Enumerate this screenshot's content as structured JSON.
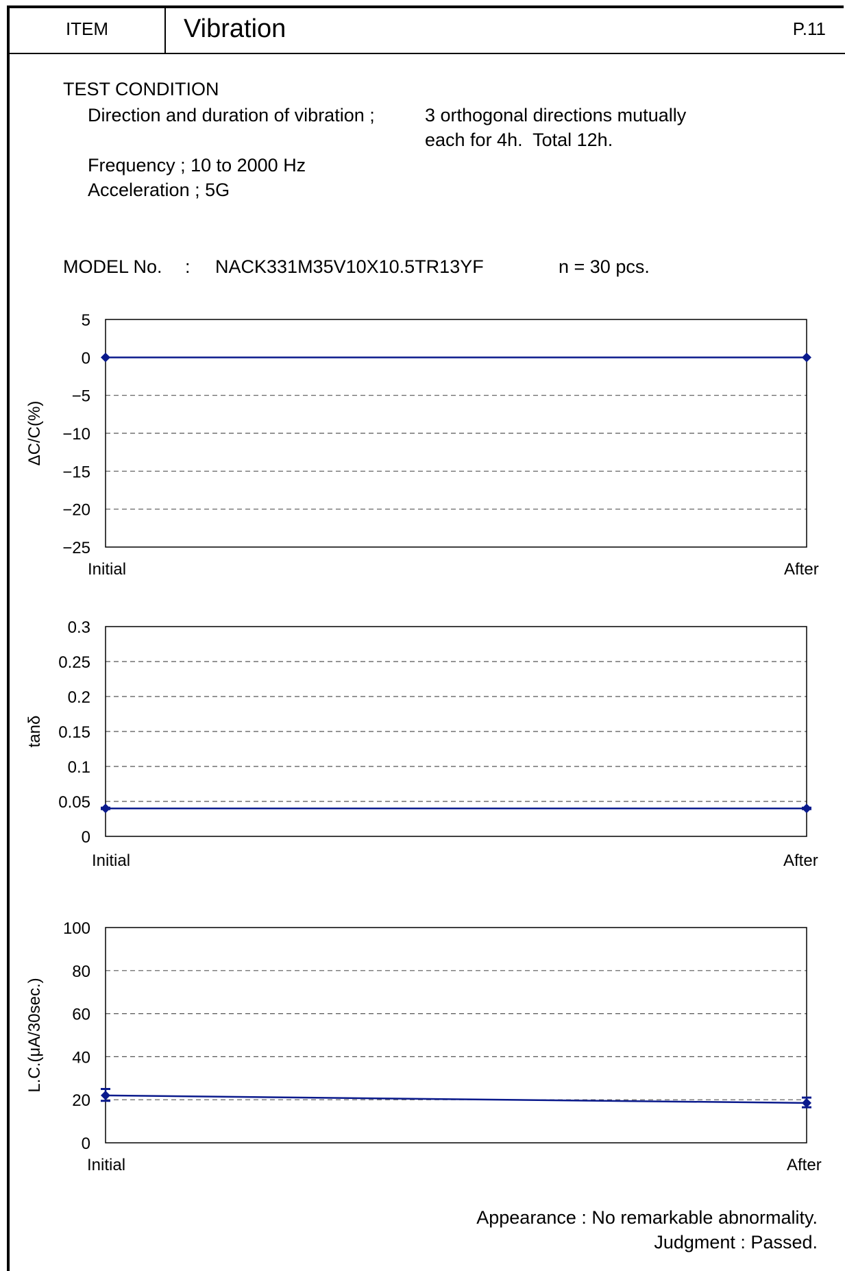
{
  "header": {
    "item_label": "ITEM",
    "title": "Vibration",
    "page": "P.11"
  },
  "test_condition": {
    "heading": "TEST CONDITION",
    "direction_label": "Direction and duration of vibration ;",
    "direction_value_1": "3 orthogonal directions mutually",
    "direction_value_2": "each for 4h.  Total 12h.",
    "frequency": "Frequency ; 10 to 2000 Hz",
    "acceleration": "Acceleration ; 5G"
  },
  "model": {
    "label": "MODEL No.",
    "sep": ":",
    "number": "NACK331M35V10X10.5TR13YF",
    "count": "n = 30 pcs."
  },
  "colors": {
    "series": "#0a1a8c",
    "grid": "#555555"
  },
  "chart_data": [
    {
      "type": "line",
      "ylabel": "ΔC/C(%)",
      "ylim": [
        -25,
        5
      ],
      "yticks": [
        "5",
        "0",
        "−5",
        "−10",
        "−15",
        "−20",
        "−25"
      ],
      "ytick_values": [
        5,
        0,
        -5,
        -10,
        -15,
        -20,
        -25
      ],
      "categories": [
        "Initial",
        "After"
      ],
      "values": [
        0,
        0
      ],
      "error_low": [
        0,
        0
      ],
      "error_high": [
        0,
        0
      ],
      "grid": "dashed horizontal"
    },
    {
      "type": "line",
      "ylabel": "tanδ",
      "ylim": [
        0,
        0.3
      ],
      "yticks": [
        "0.3",
        "0.25",
        "0.2",
        "0.15",
        "0.1",
        "0.05",
        "0"
      ],
      "ytick_values": [
        0.3,
        0.25,
        0.2,
        0.15,
        0.1,
        0.05,
        0
      ],
      "categories": [
        "Initial",
        "After"
      ],
      "values": [
        0.04,
        0.04
      ],
      "error_low": [
        0.039,
        0.039
      ],
      "error_high": [
        0.041,
        0.041
      ],
      "grid": "dashed horizontal"
    },
    {
      "type": "line",
      "ylabel": "L.C.(μA/30sec.)",
      "ylim": [
        0,
        100
      ],
      "yticks": [
        "100",
        "80",
        "60",
        "40",
        "20",
        "0"
      ],
      "ytick_values": [
        100,
        80,
        60,
        40,
        20,
        0
      ],
      "categories": [
        "Initial",
        "After"
      ],
      "values": [
        22,
        18.5
      ],
      "error_low": [
        19.5,
        16.5
      ],
      "error_high": [
        25,
        21
      ],
      "grid": "dashed horizontal"
    }
  ],
  "footer": {
    "appearance": "Appearance : No remarkable abnormality.",
    "judgment": "Judgment : Passed."
  }
}
